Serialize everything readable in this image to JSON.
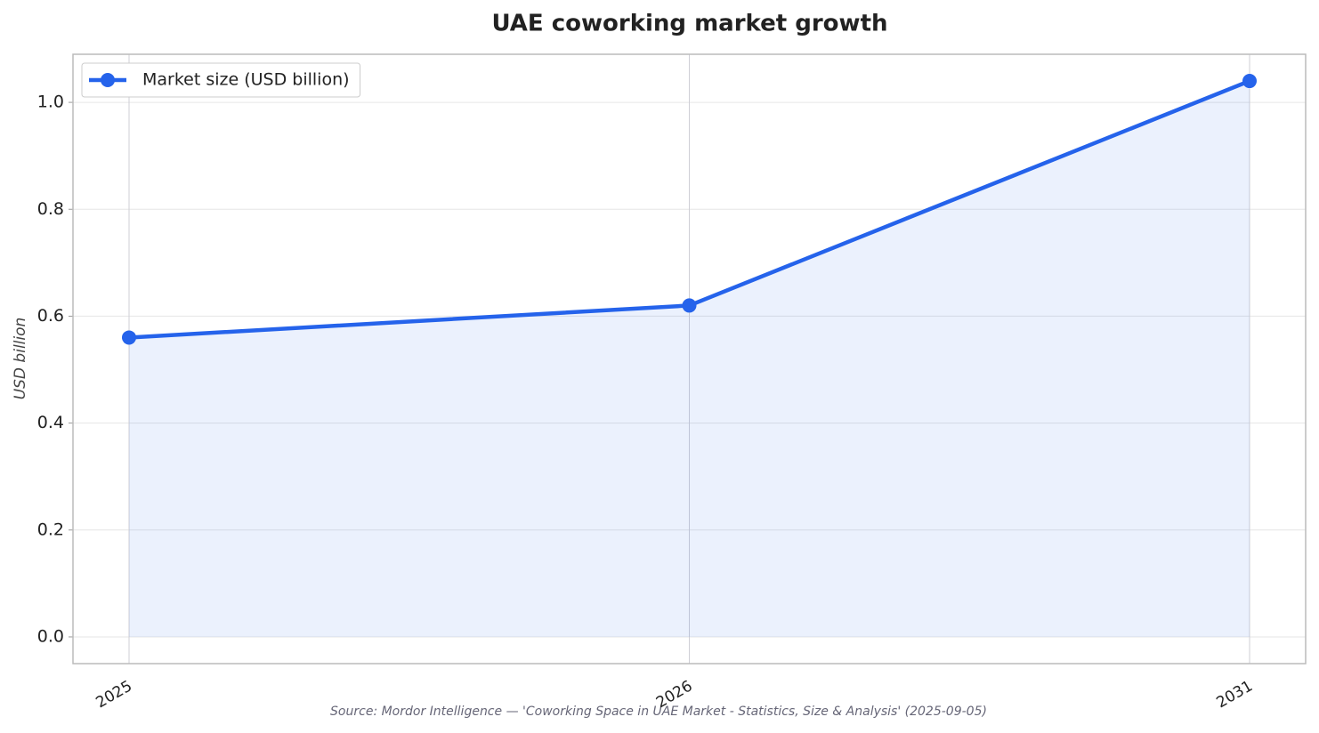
{
  "chart_data": {
    "type": "line",
    "title": "UAE coworking market growth",
    "y_label": "USD billion",
    "source": "Source: Mordor Intelligence — 'Coworking Space in UAE Market - Statistics, Size & Analysis' (2025-09-05)",
    "categories": [
      "2025",
      "2026",
      "2031"
    ],
    "series": [
      {
        "name": "Market size (USD billion)",
        "color": "#2563eb",
        "values": [
          0.56,
          0.62,
          1.04
        ]
      }
    ],
    "ylim": [
      -0.05,
      1.09
    ],
    "yticks": [
      {
        "value": 0,
        "label": "0.0"
      },
      0.2,
      0.4,
      0.6,
      0.8,
      {
        "value": 1,
        "label": "1.0"
      }
    ],
    "grid": true,
    "legend": "upper left",
    "area_fill": true
  }
}
